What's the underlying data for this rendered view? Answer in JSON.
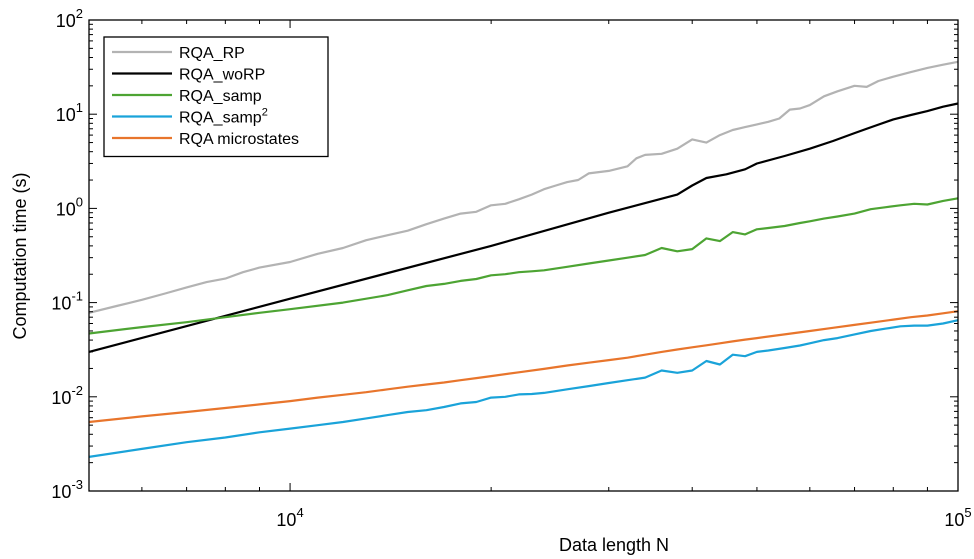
{
  "chart_data": {
    "type": "line",
    "xlabel": "Data length N",
    "ylabel": "Computation time (s)",
    "xscale": "log",
    "yscale": "log",
    "xlim": [
      5000,
      100000
    ],
    "ylim": [
      0.001,
      100
    ],
    "x_ticks": [
      {
        "value": 10000,
        "base": "10",
        "exp": "4"
      },
      {
        "value": 100000,
        "base": "10",
        "exp": "5"
      }
    ],
    "y_ticks": [
      {
        "value": 0.001,
        "base": "10",
        "exp": "-3"
      },
      {
        "value": 0.01,
        "base": "10",
        "exp": "-2"
      },
      {
        "value": 0.1,
        "base": "10",
        "exp": "-1"
      },
      {
        "value": 1,
        "base": "10",
        "exp": "0"
      },
      {
        "value": 10,
        "base": "10",
        "exp": "1"
      },
      {
        "value": 100,
        "base": "10",
        "exp": "2"
      }
    ],
    "grid": false,
    "legend": {
      "position": "top-left",
      "boxed": true
    },
    "series": [
      {
        "name": "RQA_RP",
        "color": "#b3b3b3",
        "points": [
          [
            5000,
            0.078
          ],
          [
            5500,
            0.092
          ],
          [
            6000,
            0.107
          ],
          [
            6500,
            0.125
          ],
          [
            7000,
            0.145
          ],
          [
            7500,
            0.165
          ],
          [
            8000,
            0.18
          ],
          [
            8500,
            0.21
          ],
          [
            9000,
            0.235
          ],
          [
            10000,
            0.27
          ],
          [
            11000,
            0.33
          ],
          [
            12000,
            0.38
          ],
          [
            13000,
            0.46
          ],
          [
            14000,
            0.52
          ],
          [
            15000,
            0.58
          ],
          [
            16000,
            0.68
          ],
          [
            17000,
            0.78
          ],
          [
            18000,
            0.88
          ],
          [
            19000,
            0.92
          ],
          [
            20000,
            1.08
          ],
          [
            21000,
            1.12
          ],
          [
            22000,
            1.25
          ],
          [
            23000,
            1.4
          ],
          [
            24000,
            1.6
          ],
          [
            25000,
            1.75
          ],
          [
            26000,
            1.9
          ],
          [
            27000,
            2.0
          ],
          [
            28000,
            2.35
          ],
          [
            30000,
            2.5
          ],
          [
            32000,
            2.8
          ],
          [
            33000,
            3.4
          ],
          [
            34000,
            3.7
          ],
          [
            36000,
            3.8
          ],
          [
            38000,
            4.3
          ],
          [
            40000,
            5.4
          ],
          [
            42000,
            5.0
          ],
          [
            44000,
            6.0
          ],
          [
            46000,
            6.8
          ],
          [
            48000,
            7.3
          ],
          [
            50000,
            7.8
          ],
          [
            52000,
            8.3
          ],
          [
            54000,
            9.0
          ],
          [
            56000,
            11.2
          ],
          [
            58000,
            11.5
          ],
          [
            60000,
            12.5
          ],
          [
            63000,
            15.5
          ],
          [
            66000,
            17.5
          ],
          [
            70000,
            20.0
          ],
          [
            73000,
            19.5
          ],
          [
            76000,
            22.5
          ],
          [
            80000,
            25.0
          ],
          [
            85000,
            28.0
          ],
          [
            90000,
            31.0
          ],
          [
            95000,
            33.5
          ],
          [
            100000,
            36.0
          ]
        ]
      },
      {
        "name": "RQA_woRP",
        "color": "#000000",
        "points": [
          [
            5000,
            0.03
          ],
          [
            10000,
            0.11
          ],
          [
            20000,
            0.4
          ],
          [
            30000,
            0.9
          ],
          [
            38000,
            1.4
          ],
          [
            40000,
            1.75
          ],
          [
            42000,
            2.1
          ],
          [
            45000,
            2.3
          ],
          [
            48000,
            2.6
          ],
          [
            50000,
            3.0
          ],
          [
            55000,
            3.6
          ],
          [
            60000,
            4.3
          ],
          [
            65000,
            5.2
          ],
          [
            70000,
            6.3
          ],
          [
            75000,
            7.5
          ],
          [
            80000,
            8.8
          ],
          [
            85000,
            9.8
          ],
          [
            90000,
            10.8
          ],
          [
            95000,
            12.0
          ],
          [
            100000,
            13.0
          ]
        ]
      },
      {
        "name": "RQA_samp",
        "color": "#4da433",
        "points": [
          [
            5000,
            0.047
          ],
          [
            6000,
            0.055
          ],
          [
            7000,
            0.062
          ],
          [
            8000,
            0.07
          ],
          [
            9000,
            0.078
          ],
          [
            10000,
            0.085
          ],
          [
            12000,
            0.1
          ],
          [
            14000,
            0.12
          ],
          [
            15000,
            0.135
          ],
          [
            16000,
            0.15
          ],
          [
            17000,
            0.158
          ],
          [
            18000,
            0.17
          ],
          [
            19000,
            0.178
          ],
          [
            20000,
            0.195
          ],
          [
            21000,
            0.2
          ],
          [
            22000,
            0.21
          ],
          [
            23000,
            0.215
          ],
          [
            24000,
            0.22
          ],
          [
            26000,
            0.24
          ],
          [
            28000,
            0.26
          ],
          [
            30000,
            0.28
          ],
          [
            32000,
            0.3
          ],
          [
            34000,
            0.32
          ],
          [
            36000,
            0.38
          ],
          [
            38000,
            0.35
          ],
          [
            40000,
            0.37
          ],
          [
            42000,
            0.48
          ],
          [
            44000,
            0.45
          ],
          [
            46000,
            0.56
          ],
          [
            48000,
            0.53
          ],
          [
            50000,
            0.6
          ],
          [
            52000,
            0.62
          ],
          [
            55000,
            0.65
          ],
          [
            58000,
            0.7
          ],
          [
            60000,
            0.73
          ],
          [
            63000,
            0.78
          ],
          [
            66000,
            0.82
          ],
          [
            70000,
            0.88
          ],
          [
            74000,
            0.98
          ],
          [
            78000,
            1.03
          ],
          [
            82000,
            1.08
          ],
          [
            86000,
            1.12
          ],
          [
            90000,
            1.1
          ],
          [
            95000,
            1.2
          ],
          [
            100000,
            1.28
          ]
        ]
      },
      {
        "name": "RQA_samp",
        "name_sup": "2",
        "color": "#1aa3d9",
        "points": [
          [
            5000,
            0.0023
          ],
          [
            6000,
            0.0028
          ],
          [
            7000,
            0.0033
          ],
          [
            8000,
            0.0037
          ],
          [
            9000,
            0.0042
          ],
          [
            10000,
            0.0046
          ],
          [
            11000,
            0.005
          ],
          [
            12000,
            0.0054
          ],
          [
            13000,
            0.0059
          ],
          [
            14000,
            0.0064
          ],
          [
            15000,
            0.0069
          ],
          [
            16000,
            0.0072
          ],
          [
            17000,
            0.0078
          ],
          [
            18000,
            0.0085
          ],
          [
            19000,
            0.0088
          ],
          [
            20000,
            0.0098
          ],
          [
            21000,
            0.01
          ],
          [
            22000,
            0.0106
          ],
          [
            23000,
            0.0107
          ],
          [
            24000,
            0.011
          ],
          [
            26000,
            0.012
          ],
          [
            28000,
            0.013
          ],
          [
            30000,
            0.014
          ],
          [
            32000,
            0.015
          ],
          [
            34000,
            0.016
          ],
          [
            36000,
            0.019
          ],
          [
            38000,
            0.018
          ],
          [
            40000,
            0.019
          ],
          [
            42000,
            0.024
          ],
          [
            44000,
            0.022
          ],
          [
            46000,
            0.028
          ],
          [
            48000,
            0.027
          ],
          [
            50000,
            0.03
          ],
          [
            52000,
            0.031
          ],
          [
            55000,
            0.033
          ],
          [
            58000,
            0.035
          ],
          [
            60000,
            0.037
          ],
          [
            63000,
            0.04
          ],
          [
            66000,
            0.042
          ],
          [
            70000,
            0.046
          ],
          [
            74000,
            0.05
          ],
          [
            78000,
            0.053
          ],
          [
            82000,
            0.056
          ],
          [
            86000,
            0.057
          ],
          [
            90000,
            0.057
          ],
          [
            95000,
            0.06
          ],
          [
            100000,
            0.065
          ]
        ]
      },
      {
        "name": "RQA microstates",
        "color": "#e8752c",
        "points": [
          [
            5000,
            0.0054
          ],
          [
            6000,
            0.0062
          ],
          [
            7000,
            0.0069
          ],
          [
            8000,
            0.0076
          ],
          [
            9000,
            0.0083
          ],
          [
            10000,
            0.009
          ],
          [
            11000,
            0.0098
          ],
          [
            12000,
            0.0105
          ],
          [
            13000,
            0.0112
          ],
          [
            14000,
            0.012
          ],
          [
            15000,
            0.0128
          ],
          [
            16000,
            0.0135
          ],
          [
            17000,
            0.0142
          ],
          [
            18000,
            0.015
          ],
          [
            19000,
            0.0158
          ],
          [
            20000,
            0.0166
          ],
          [
            22000,
            0.0182
          ],
          [
            24000,
            0.0198
          ],
          [
            26000,
            0.0215
          ],
          [
            28000,
            0.023
          ],
          [
            30000,
            0.0245
          ],
          [
            32000,
            0.026
          ],
          [
            34000,
            0.028
          ],
          [
            36000,
            0.03
          ],
          [
            38000,
            0.0318
          ],
          [
            40000,
            0.0335
          ],
          [
            42000,
            0.0352
          ],
          [
            44000,
            0.037
          ],
          [
            46000,
            0.0387
          ],
          [
            48000,
            0.0405
          ],
          [
            50000,
            0.042
          ],
          [
            55000,
            0.046
          ],
          [
            60000,
            0.05
          ],
          [
            65000,
            0.054
          ],
          [
            70000,
            0.058
          ],
          [
            75000,
            0.062
          ],
          [
            80000,
            0.066
          ],
          [
            85000,
            0.07
          ],
          [
            90000,
            0.073
          ],
          [
            95000,
            0.077
          ],
          [
            100000,
            0.081
          ]
        ]
      }
    ]
  }
}
